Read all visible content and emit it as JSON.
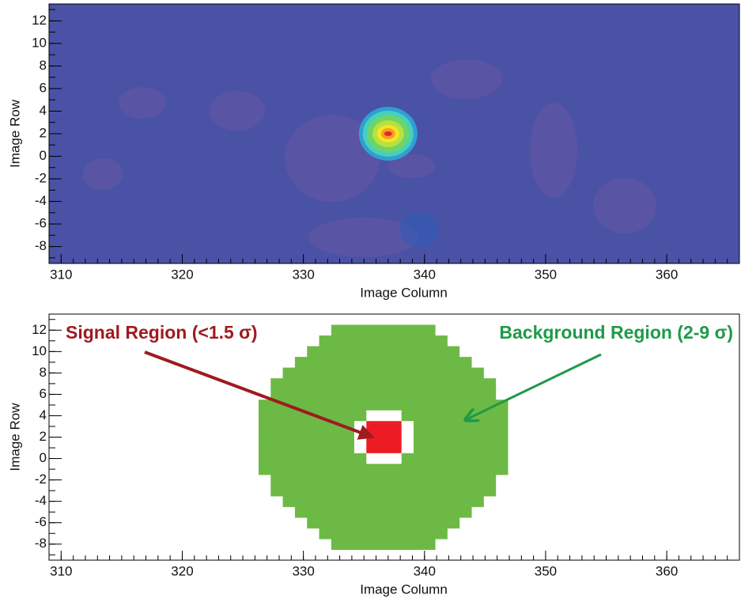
{
  "chart_data": [
    {
      "type": "heatmap",
      "xlabel": "Image Column",
      "ylabel": "Image Row",
      "xlim": [
        309,
        366
      ],
      "ylim": [
        -9.5,
        13.5
      ],
      "xticks": [
        310,
        320,
        330,
        340,
        350,
        360
      ],
      "yticks": [
        -8,
        -6,
        -4,
        -2,
        0,
        2,
        4,
        6,
        8,
        10,
        12
      ],
      "background": "#4a52a6",
      "peak": {
        "x": 337,
        "y": 2
      }
    },
    {
      "type": "regions",
      "xlabel": "Image Column",
      "ylabel": "Image Row",
      "xlim": [
        309,
        366
      ],
      "ylim": [
        -9.5,
        13.5
      ],
      "xticks": [
        310,
        320,
        330,
        340,
        350,
        360
      ],
      "yticks": [
        -8,
        -6,
        -4,
        -2,
        0,
        2,
        4,
        6,
        8,
        10,
        12
      ],
      "background_region": {
        "name": "Background Region (2-9 σ)",
        "color": "#6cba45",
        "text_color": "#1f9a48",
        "rows": [
          12,
          11,
          10,
          9,
          8,
          7,
          6,
          5,
          4,
          3,
          2,
          1,
          0,
          -1,
          -2,
          -3,
          -4,
          -5,
          -6,
          -7,
          -8
        ],
        "x0": [
          332.3,
          331.3,
          330.3,
          329.3,
          328.3,
          327.3,
          327.3,
          326.3,
          326.3,
          326.3,
          326.3,
          326.3,
          326.3,
          326.3,
          327.3,
          327.3,
          328.3,
          329.3,
          330.3,
          331.3,
          332.3
        ],
        "x1": [
          340.9,
          341.9,
          342.9,
          343.9,
          344.9,
          345.9,
          345.9,
          346.9,
          346.9,
          346.9,
          346.9,
          346.9,
          346.9,
          346.9,
          345.9,
          345.9,
          344.9,
          343.9,
          342.9,
          341.9,
          340.9
        ]
      },
      "gap": {
        "x0": [
          334.2,
          335.2
        ],
        "x1": [
          339.1,
          338.1
        ],
        "y0": [
          0.5,
          -0.5
        ],
        "y1": [
          3.5,
          4.5
        ]
      },
      "signal_region": {
        "name": "Signal Region (<1.5 σ)",
        "color": "#ed1c24",
        "text_color": "#9e1b20",
        "x0": 335.2,
        "x1": 338.1,
        "y0": 0.5,
        "y1": 3.5
      }
    }
  ]
}
